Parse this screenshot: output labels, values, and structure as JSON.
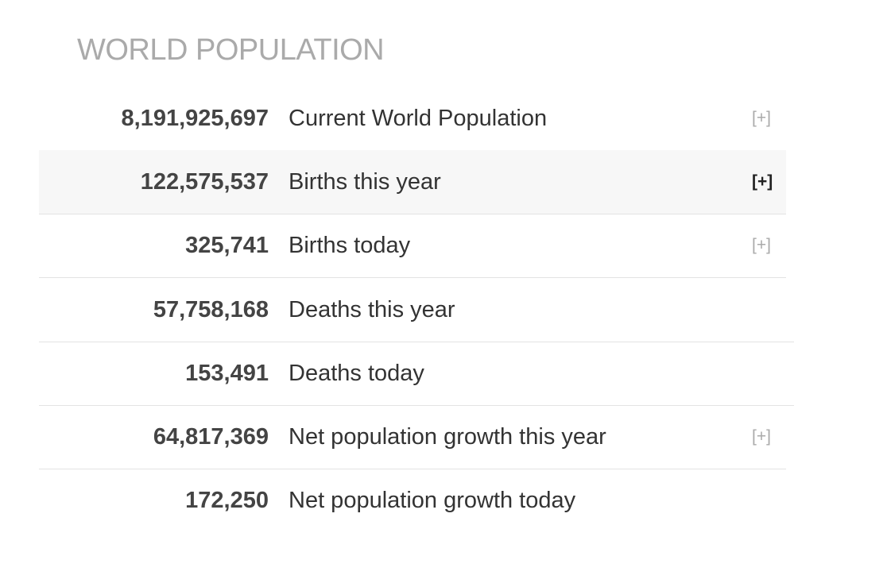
{
  "header": {
    "title": "WORLD POPULATION"
  },
  "table": {
    "rows": [
      {
        "value": "8,191,925,697",
        "label": "Current World Population",
        "expand": "[+]"
      },
      {
        "value": "122,575,537",
        "label": "Births this year",
        "expand": "[+]"
      },
      {
        "value": "325,741",
        "label": "Births today",
        "expand": "[+]"
      },
      {
        "value": "57,758,168",
        "label": "Deaths this year"
      },
      {
        "value": "153,491",
        "label": "Deaths today"
      },
      {
        "value": "64,817,369",
        "label": "Net population growth this year",
        "expand": "[+]"
      },
      {
        "value": "172,250",
        "label": "Net population growth today"
      }
    ]
  }
}
